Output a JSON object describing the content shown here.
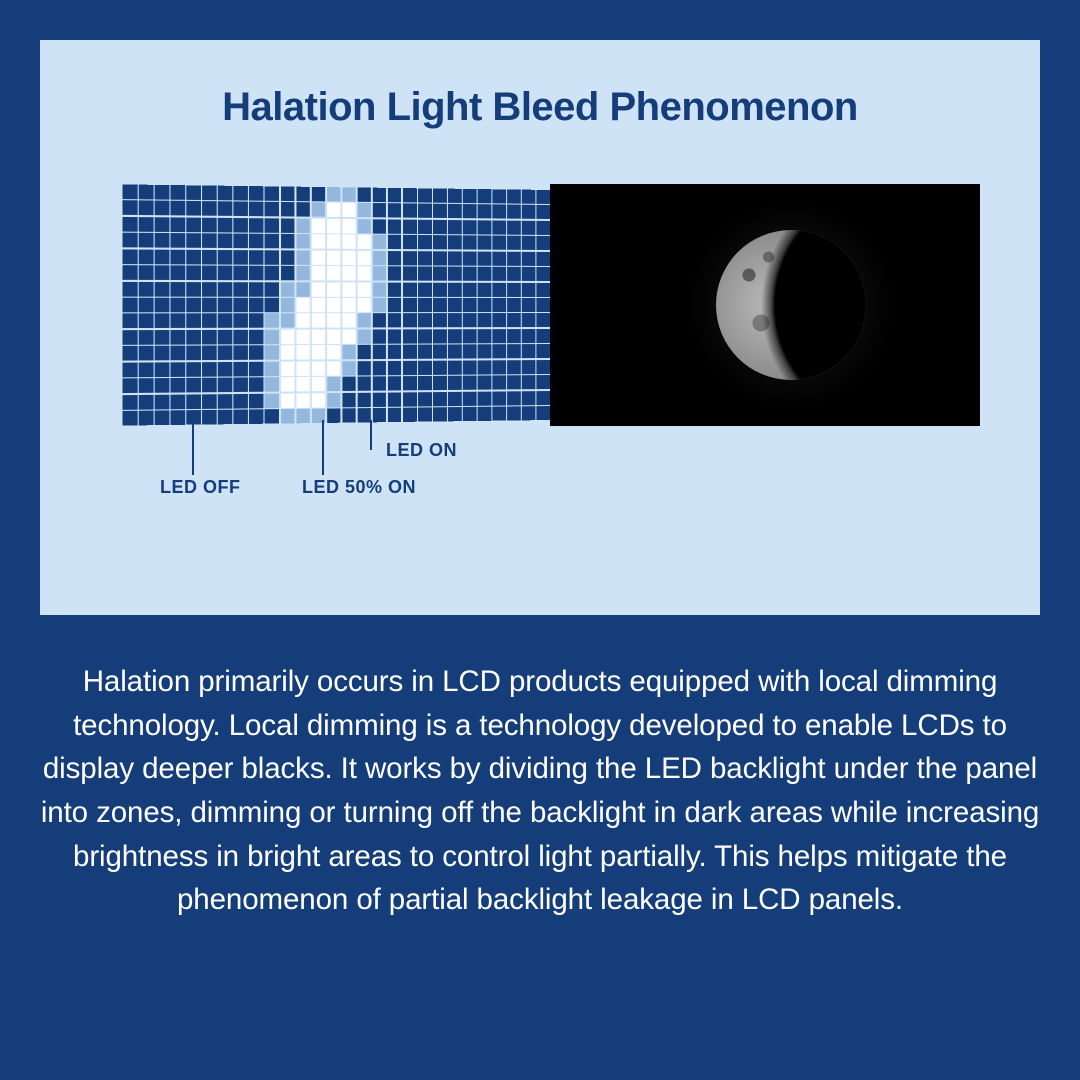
{
  "colors": {
    "page_bg": "#143d7a",
    "card_bg": "#cfe3f7",
    "grid_off": "#143d7a",
    "grid_on": "#ffffff",
    "grid_half": "#94b7dd",
    "title": "#143d7a",
    "label": "#143d7a",
    "body_text": "#ffffff",
    "moon_panel_bg": "#000000"
  },
  "title": "Halation Light Bleed Phenomenon",
  "labels": {
    "led_on": "LED ON",
    "led_50": "LED 50% ON",
    "led_off": "LED OFF"
  },
  "grid": {
    "cols": 28,
    "rows": 15,
    "cells_on": [
      [
        1,
        13
      ],
      [
        1,
        14
      ],
      [
        2,
        12
      ],
      [
        2,
        13
      ],
      [
        2,
        14
      ],
      [
        3,
        12
      ],
      [
        3,
        13
      ],
      [
        3,
        14
      ],
      [
        3,
        15
      ],
      [
        4,
        12
      ],
      [
        4,
        13
      ],
      [
        4,
        14
      ],
      [
        4,
        15
      ],
      [
        5,
        12
      ],
      [
        5,
        13
      ],
      [
        5,
        14
      ],
      [
        5,
        15
      ],
      [
        6,
        12
      ],
      [
        6,
        13
      ],
      [
        6,
        14
      ],
      [
        6,
        15
      ],
      [
        7,
        11
      ],
      [
        7,
        12
      ],
      [
        7,
        13
      ],
      [
        7,
        14
      ],
      [
        7,
        15
      ],
      [
        8,
        11
      ],
      [
        8,
        12
      ],
      [
        8,
        13
      ],
      [
        8,
        14
      ],
      [
        9,
        10
      ],
      [
        9,
        11
      ],
      [
        9,
        12
      ],
      [
        9,
        13
      ],
      [
        9,
        14
      ],
      [
        10,
        10
      ],
      [
        10,
        11
      ],
      [
        10,
        12
      ],
      [
        10,
        13
      ],
      [
        11,
        10
      ],
      [
        11,
        11
      ],
      [
        11,
        12
      ],
      [
        11,
        13
      ],
      [
        12,
        10
      ],
      [
        12,
        11
      ],
      [
        12,
        12
      ],
      [
        13,
        10
      ],
      [
        13,
        11
      ],
      [
        13,
        12
      ]
    ],
    "cells_half": [
      [
        0,
        13
      ],
      [
        0,
        14
      ],
      [
        1,
        12
      ],
      [
        1,
        15
      ],
      [
        2,
        11
      ],
      [
        2,
        15
      ],
      [
        3,
        11
      ],
      [
        3,
        16
      ],
      [
        4,
        11
      ],
      [
        4,
        16
      ],
      [
        5,
        11
      ],
      [
        5,
        16
      ],
      [
        6,
        10
      ],
      [
        6,
        11
      ],
      [
        6,
        16
      ],
      [
        7,
        10
      ],
      [
        7,
        16
      ],
      [
        8,
        9
      ],
      [
        8,
        10
      ],
      [
        8,
        15
      ],
      [
        9,
        9
      ],
      [
        9,
        15
      ],
      [
        10,
        9
      ],
      [
        10,
        14
      ],
      [
        11,
        9
      ],
      [
        11,
        14
      ],
      [
        12,
        9
      ],
      [
        12,
        13
      ],
      [
        13,
        9
      ],
      [
        13,
        13
      ],
      [
        14,
        10
      ],
      [
        14,
        11
      ],
      [
        14,
        12
      ]
    ]
  },
  "body": "Halation primarily occurs in LCD products equipped with local dimming technology. Local dimming is a technology developed to enable LCDs to display deeper blacks. It works by dividing the LED backlight under the panel into zones, dimming or turning off the backlight in dark areas while increasing brightness in bright areas to control light partially. This helps mitigate the phenomenon of partial backlight leakage in LCD panels."
}
